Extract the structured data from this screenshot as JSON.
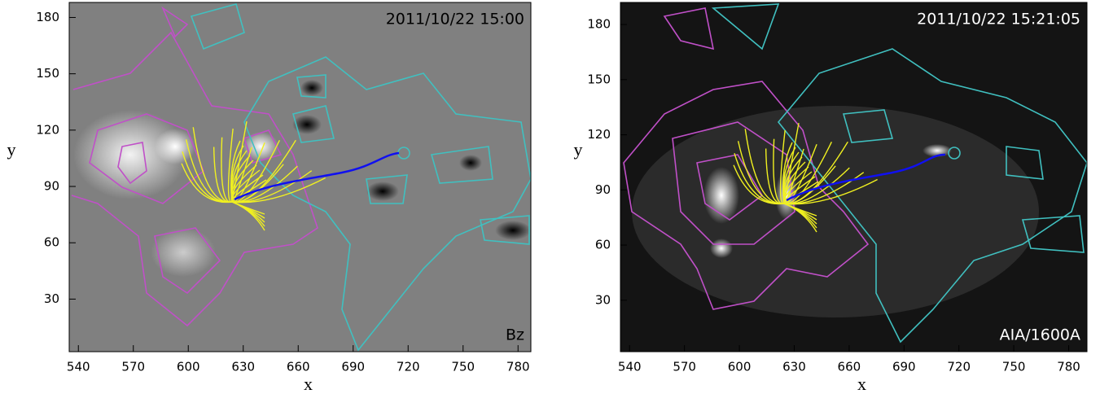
{
  "chart_data": [
    {
      "type": "image",
      "annotation": "2011/10/22 15:00",
      "label": "Bz",
      "xlabel": "x",
      "ylabel": "y",
      "xlim": [
        535,
        787
      ],
      "ylim": [
        2,
        188
      ],
      "xticks": [
        540,
        570,
        600,
        630,
        660,
        690,
        720,
        750,
        780
      ],
      "yticks": [
        30,
        60,
        90,
        120,
        150,
        180
      ],
      "background": "#808080"
    },
    {
      "type": "image",
      "annotation": "2011/10/22 15:21:05",
      "label": "AIA/1600A",
      "xlabel": "x",
      "ylabel": "y",
      "xlim": [
        535,
        790
      ],
      "ylim": [
        2,
        192
      ],
      "xticks": [
        540,
        570,
        600,
        630,
        660,
        690,
        720,
        750,
        780
      ],
      "yticks": [
        30,
        60,
        90,
        120,
        150,
        180
      ],
      "background": "#141414"
    }
  ]
}
